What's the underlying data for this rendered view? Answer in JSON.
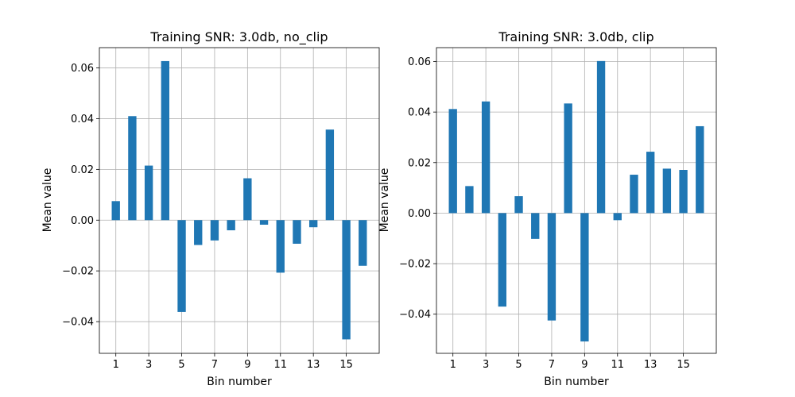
{
  "chart_data": [
    {
      "type": "bar",
      "title": "Training SNR: 3.0db, no_clip",
      "xlabel": "Bin number",
      "ylabel": "Mean value",
      "categories": [
        1,
        2,
        3,
        4,
        5,
        6,
        7,
        8,
        9,
        10,
        11,
        12,
        13,
        14,
        15,
        16
      ],
      "values": [
        0.0075,
        0.041,
        0.0215,
        0.0627,
        -0.0362,
        -0.0098,
        -0.008,
        -0.004,
        0.0165,
        -0.0018,
        -0.0207,
        -0.0093,
        -0.0028,
        0.0357,
        -0.047,
        -0.018
      ],
      "xticks": [
        1,
        3,
        5,
        7,
        9,
        11,
        13,
        15
      ],
      "yticks": [
        -0.04,
        -0.02,
        0.0,
        0.02,
        0.04,
        0.06
      ],
      "ytick_labels": [
        "−0.04",
        "−0.02",
        "0.00",
        "0.02",
        "0.04",
        "0.06"
      ],
      "xlim": [
        0.0,
        17.0
      ],
      "ylim": [
        -0.0525,
        0.068
      ],
      "grid": true,
      "bar_color": "#1f77b4"
    },
    {
      "type": "bar",
      "title": "Training SNR: 3.0db, clip",
      "xlabel": "Bin number",
      "ylabel": "Mean value",
      "categories": [
        1,
        2,
        3,
        4,
        5,
        6,
        7,
        8,
        9,
        10,
        11,
        12,
        13,
        14,
        15,
        16
      ],
      "values": [
        0.0412,
        0.0107,
        0.0442,
        -0.037,
        0.0067,
        -0.0102,
        -0.0425,
        0.0434,
        -0.0508,
        0.0602,
        -0.0028,
        0.0152,
        0.0243,
        0.0176,
        0.0171,
        0.0344
      ],
      "xticks": [
        1,
        3,
        5,
        7,
        9,
        11,
        13,
        15
      ],
      "yticks": [
        -0.04,
        -0.02,
        0.0,
        0.02,
        0.04,
        0.06
      ],
      "ytick_labels": [
        "−0.04",
        "−0.02",
        "0.00",
        "0.02",
        "0.04",
        "0.06"
      ],
      "xlim": [
        0.0,
        17.0
      ],
      "ylim": [
        -0.0555,
        0.0655
      ],
      "grid": true,
      "bar_color": "#1f77b4"
    }
  ]
}
